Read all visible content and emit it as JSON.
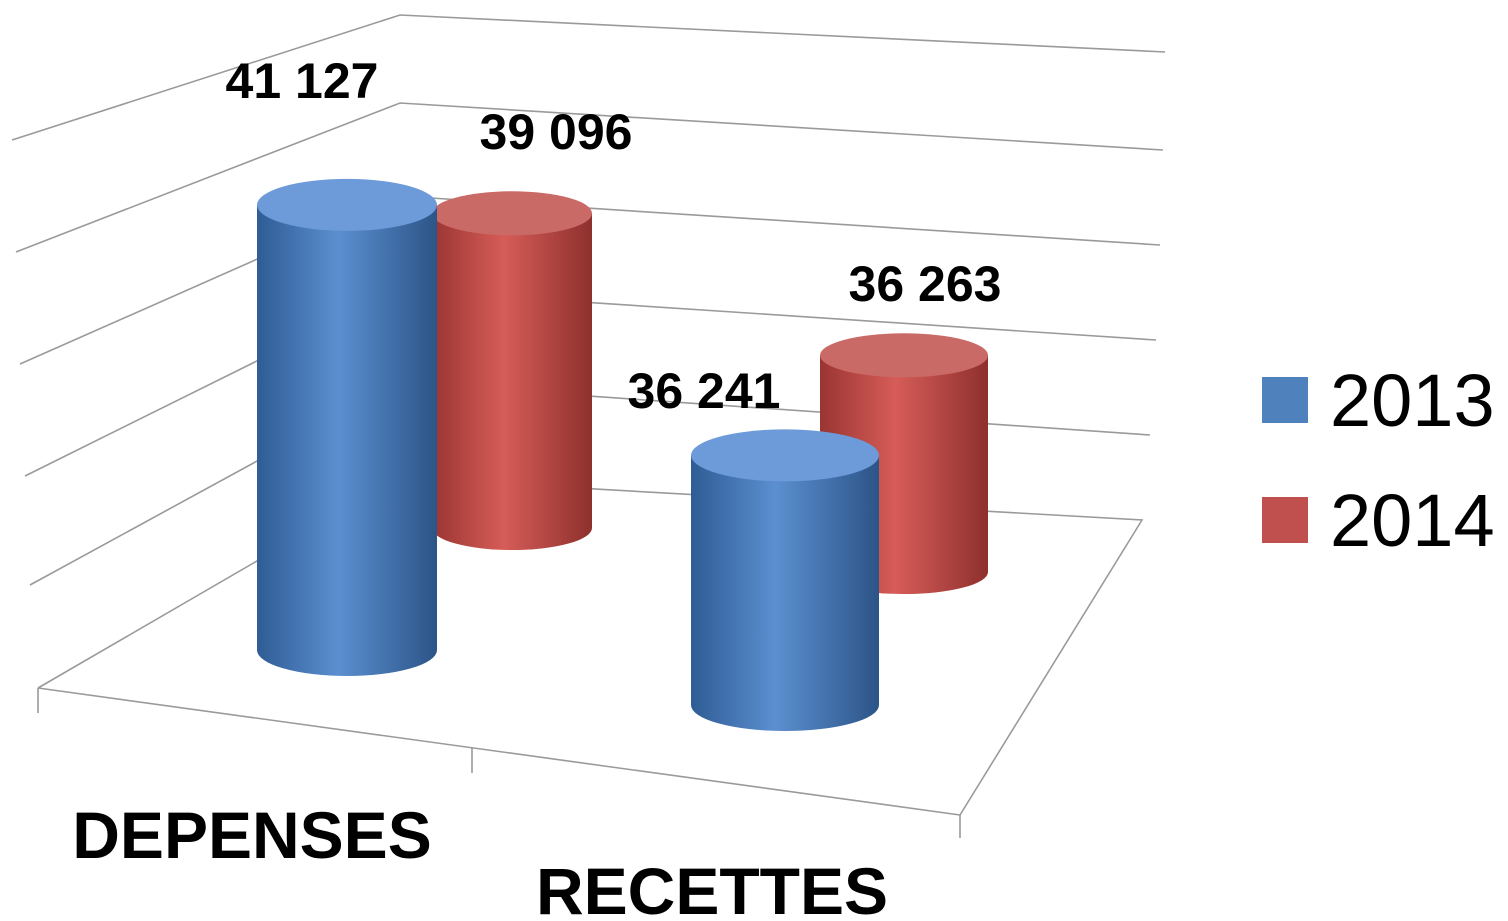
{
  "chart_data": {
    "type": "bar",
    "style": "3d-cylinder",
    "categories": [
      "DEPENSES",
      "RECETTES"
    ],
    "series": [
      {
        "name": "2013",
        "color": "#4F81BD",
        "values": [
          41127,
          36241
        ],
        "labels": [
          "41 127",
          "36 241"
        ]
      },
      {
        "name": "2014",
        "color": "#C0504D",
        "values": [
          39096,
          36263
        ],
        "labels": [
          "39 096",
          "36 263"
        ]
      }
    ],
    "ylim": [
      30000,
      42000
    ],
    "grid": true,
    "legend": "right",
    "title": "",
    "xlabel": "",
    "ylabel": ""
  }
}
